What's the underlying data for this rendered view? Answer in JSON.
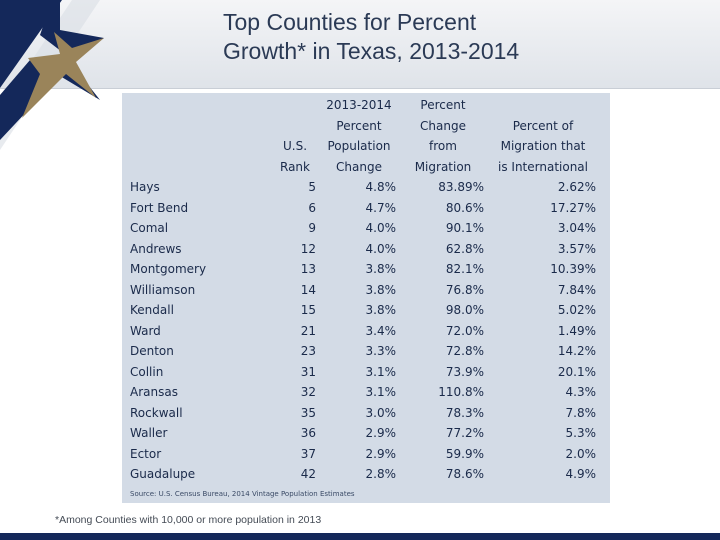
{
  "title_line1": "Top Counties for Percent",
  "title_line2": "Growth* in Texas, 2013-2014",
  "columns": [
    "U.S. Rank",
    "2013-2014 Percent Population Change",
    "Percent Change from Migration",
    "Percent of Migration that is International"
  ],
  "headers": {
    "rank": [
      "U.S.",
      "Rank"
    ],
    "pop_change": [
      "2013-2014",
      "Percent",
      "Population",
      "Change"
    ],
    "migration": [
      "Percent",
      "Change",
      "from",
      "Migration"
    ],
    "international": [
      "Percent of",
      "Migration that",
      "is International"
    ]
  },
  "rows": [
    {
      "county": "Hays",
      "rank": "5",
      "pop_change": "4.8%",
      "migration": "83.89%",
      "international": "2.62%"
    },
    {
      "county": "Fort Bend",
      "rank": "6",
      "pop_change": "4.7%",
      "migration": "80.6%",
      "international": "17.27%"
    },
    {
      "county": "Comal",
      "rank": "9",
      "pop_change": "4.0%",
      "migration": "90.1%",
      "international": "3.04%"
    },
    {
      "county": "Andrews",
      "rank": "12",
      "pop_change": "4.0%",
      "migration": "62.8%",
      "international": "3.57%"
    },
    {
      "county": "Montgomery",
      "rank": "13",
      "pop_change": "3.8%",
      "migration": "82.1%",
      "international": "10.39%"
    },
    {
      "county": "Williamson",
      "rank": "14",
      "pop_change": "3.8%",
      "migration": "76.8%",
      "international": "7.84%"
    },
    {
      "county": "Kendall",
      "rank": "15",
      "pop_change": "3.8%",
      "migration": "98.0%",
      "international": "5.02%"
    },
    {
      "county": "Ward",
      "rank": "21",
      "pop_change": "3.4%",
      "migration": "72.0%",
      "international": "1.49%"
    },
    {
      "county": "Denton",
      "rank": "23",
      "pop_change": "3.3%",
      "migration": "72.8%",
      "international": "14.2%"
    },
    {
      "county": "Collin",
      "rank": "31",
      "pop_change": "3.1%",
      "migration": "73.9%",
      "international": "20.1%"
    },
    {
      "county": "Aransas",
      "rank": "32",
      "pop_change": "3.1%",
      "migration": "110.8%",
      "international": "4.3%"
    },
    {
      "county": "Rockwall",
      "rank": "35",
      "pop_change": "3.0%",
      "migration": "78.3%",
      "international": "7.8%"
    },
    {
      "county": "Waller",
      "rank": "36",
      "pop_change": "2.9%",
      "migration": "77.2%",
      "international": "5.3%"
    },
    {
      "county": "Ector",
      "rank": "37",
      "pop_change": "2.9%",
      "migration": "59.9%",
      "international": "2.0%"
    },
    {
      "county": "Guadalupe",
      "rank": "42",
      "pop_change": "2.8%",
      "migration": "78.6%",
      "international": "4.9%"
    }
  ],
  "source": "Source: U.S. Census Bureau, 2014 Vintage Population Estimates",
  "footnote": "*Among Counties with 10,000 or more population in 2013",
  "colors": {
    "navy": "#14285a",
    "gold": "#9a845a",
    "table_bg": "#d3dbe6",
    "text": "#1a2a4a"
  }
}
